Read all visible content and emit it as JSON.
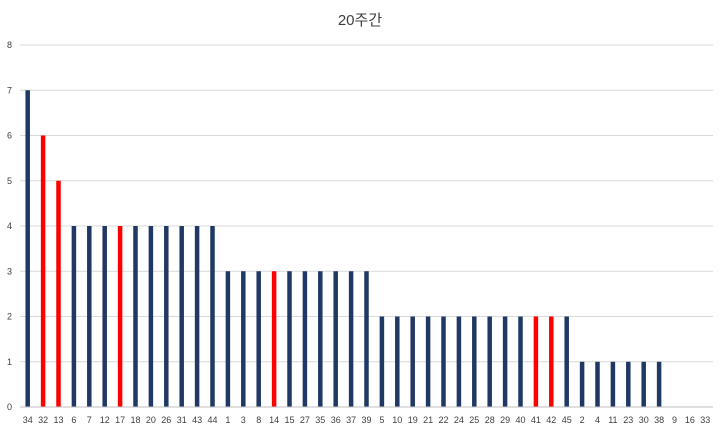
{
  "chart_data": {
    "type": "bar",
    "title": "20주간",
    "xlabel": "",
    "ylabel": "",
    "ylim": [
      0,
      8
    ],
    "y_ticks": [
      "0",
      "1",
      "2",
      "3",
      "4",
      "5",
      "6",
      "7",
      "8"
    ],
    "grid": true,
    "legend": "none",
    "categories": [
      "34",
      "32",
      "13",
      "6",
      "7",
      "12",
      "17",
      "18",
      "20",
      "26",
      "31",
      "43",
      "44",
      "1",
      "3",
      "8",
      "14",
      "15",
      "27",
      "35",
      "36",
      "37",
      "39",
      "5",
      "10",
      "19",
      "21",
      "22",
      "24",
      "25",
      "28",
      "29",
      "40",
      "41",
      "42",
      "45",
      "2",
      "4",
      "11",
      "23",
      "30",
      "38",
      "9",
      "16",
      "33"
    ],
    "values": [
      7,
      6,
      5,
      4,
      4,
      4,
      4,
      4,
      4,
      4,
      4,
      4,
      4,
      3,
      3,
      3,
      3,
      3,
      3,
      3,
      3,
      3,
      3,
      2,
      2,
      2,
      2,
      2,
      2,
      2,
      2,
      2,
      2,
      2,
      2,
      2,
      1,
      1,
      1,
      1,
      1,
      1,
      0,
      0,
      0
    ],
    "highlighted": [
      "32",
      "13",
      "17",
      "14",
      "41",
      "42"
    ],
    "colors": {
      "default": "#1f3864",
      "highlight": "#ff0000"
    }
  }
}
